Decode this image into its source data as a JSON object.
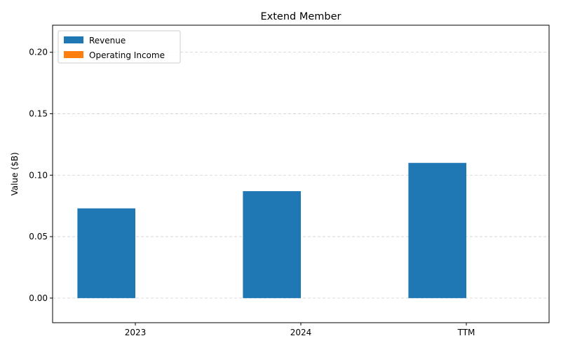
{
  "chart_data": {
    "type": "bar",
    "title": "Extend Member",
    "xlabel": "",
    "ylabel": "Value ($B)",
    "categories": [
      "2023",
      "2024",
      "TTM"
    ],
    "series": [
      {
        "name": "Revenue",
        "values": [
          0.073,
          0.087,
          0.11
        ],
        "color": "#1f77b4"
      },
      {
        "name": "Operating Income",
        "values": [
          0,
          0,
          0
        ],
        "color": "#ff7f0e"
      }
    ],
    "ylim": [
      -0.02,
      0.222
    ],
    "yticks": [
      "0.00",
      "0.05",
      "0.10",
      "0.15",
      "0.20"
    ],
    "grid": "y-dashed",
    "legend_position": "top-left"
  }
}
